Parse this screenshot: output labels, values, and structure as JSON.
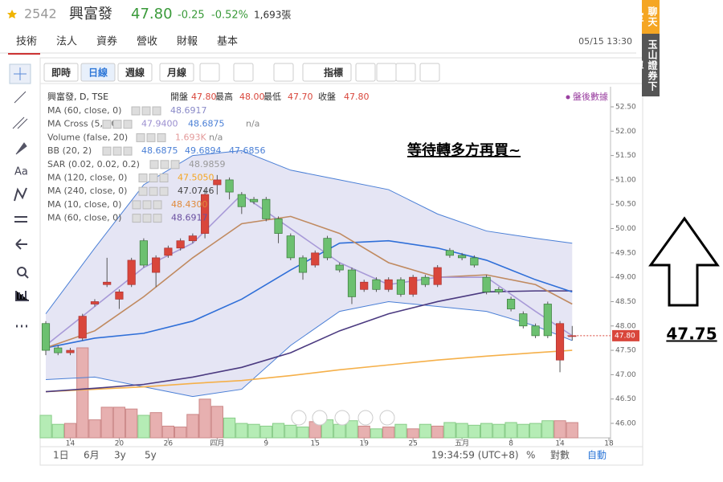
{
  "header": {
    "code": "2542",
    "name": "興富發",
    "price": "47.80",
    "change": "-0.25",
    "change_pct": "-0.52%",
    "volume": "1,693張",
    "datetime": "05/15 13:30"
  },
  "tabs": [
    "技術",
    "法人",
    "資券",
    "營收",
    "財報",
    "基本"
  ],
  "toolbar": [
    "即時",
    "日線",
    "週線",
    "月線",
    "指標"
  ],
  "side_tools": {
    "text_tool": "Aa"
  },
  "side_tabs": [
    "聊天室",
    "玉山證券下單"
  ],
  "bottom": {
    "ranges": [
      "1日",
      "6月",
      "3y",
      "5y"
    ],
    "clock": "19:34:59 (UTC+8)",
    "percent": "%",
    "log": "對數",
    "auto": "自動"
  },
  "note": {
    "text": "47.75"
  },
  "chart_data": {
    "type": "candlestick",
    "title": "興富發, D, TSE",
    "ohlc_info": [
      "開盤",
      "47.80",
      "最高",
      "48.00",
      "最低",
      "47.70",
      "收盤",
      "47.80"
    ],
    "after_hours": "盤後數據",
    "annotation": "等待轉多方再買~",
    "price_tag": "47.80",
    "legend": [
      {
        "label": "MA (60, close, 0)",
        "values": [
          "48.6917"
        ],
        "colors": [
          "#8a8ac8"
        ]
      },
      {
        "label": "MA Cross (5, 20)",
        "values": [
          "47.9400",
          "48.6875",
          "n/a"
        ],
        "colors": [
          "#9b8fd0",
          "#4a7fd6",
          "#888888"
        ]
      },
      {
        "label": "Volume (false, 20)",
        "values": [
          "1.693K",
          "n/a"
        ],
        "colors": [
          "#e39a9a",
          "#888888"
        ]
      },
      {
        "label": "BB (20, 2)",
        "values": [
          "48.6875",
          "49.6894",
          "47.6856"
        ],
        "colors": [
          "#4a7fd6",
          "#4a7fd6",
          "#4a7fd6"
        ]
      },
      {
        "label": "SAR (0.02, 0.02, 0.2)",
        "values": [
          "48.9859"
        ],
        "colors": [
          "#999999"
        ]
      },
      {
        "label": "MA (120, close, 0)",
        "values": [
          "47.5050"
        ],
        "colors": [
          "#f5a623"
        ]
      },
      {
        "label": "MA (240, close, 0)",
        "values": [
          "47.0746"
        ],
        "colors": [
          "#444444"
        ]
      },
      {
        "label": "MA (10, close, 0)",
        "values": [
          "48.4300"
        ],
        "colors": [
          "#e08a3c"
        ]
      },
      {
        "label": "MA (60, close, 0)",
        "values": [
          "48.6917"
        ],
        "colors": [
          "#6a4fa0"
        ]
      }
    ],
    "categories": [
      null,
      null,
      "14",
      null,
      null,
      null,
      "20",
      null,
      null,
      null,
      "26",
      null,
      null,
      null,
      "四月",
      null,
      null,
      null,
      "9",
      null,
      null,
      null,
      "15",
      null,
      null,
      null,
      "19",
      null,
      null,
      null,
      "25",
      null,
      null,
      null,
      "五月",
      null,
      null,
      null,
      "8",
      null,
      null,
      null,
      "14",
      null,
      null,
      null,
      "18"
    ],
    "open": [
      48.05,
      47.55,
      47.45,
      47.75,
      48.45,
      48.85,
      48.55,
      48.85,
      49.75,
      49.1,
      49.45,
      49.6,
      49.75,
      49.9,
      50.9,
      51.0,
      50.7,
      50.6,
      50.6,
      50.2,
      49.85,
      49.4,
      49.25,
      49.8,
      49.25,
      49.15,
      48.75,
      48.95,
      48.75,
      48.95,
      48.65,
      49.0,
      48.85,
      49.55,
      49.45,
      49.4,
      49.0,
      48.75,
      48.55,
      48.25,
      48.0,
      48.45,
      47.3,
      47.8,
      null,
      null,
      null
    ],
    "high": [
      48.1,
      47.6,
      47.55,
      48.25,
      48.55,
      49.4,
      48.75,
      49.4,
      49.8,
      49.45,
      49.65,
      49.8,
      49.9,
      50.8,
      51.1,
      51.05,
      50.75,
      50.65,
      50.65,
      50.25,
      49.9,
      49.45,
      49.55,
      49.85,
      49.3,
      49.2,
      48.95,
      49.0,
      49.0,
      49.0,
      49.05,
      49.05,
      49.25,
      49.6,
      49.5,
      49.45,
      49.05,
      48.8,
      48.6,
      48.3,
      48.05,
      48.5,
      48.1,
      48.0,
      null,
      null,
      null
    ],
    "low": [
      47.4,
      47.4,
      47.4,
      47.7,
      48.4,
      48.8,
      48.35,
      48.8,
      49.2,
      48.8,
      49.4,
      49.55,
      49.7,
      49.8,
      50.7,
      50.6,
      50.3,
      50.5,
      50.15,
      49.7,
      49.35,
      48.95,
      49.2,
      49.35,
      49.1,
      48.45,
      48.7,
      48.7,
      48.7,
      48.6,
      48.6,
      48.8,
      48.8,
      49.4,
      49.35,
      49.2,
      48.65,
      48.65,
      48.3,
      47.95,
      47.75,
      47.75,
      47.05,
      47.7,
      null,
      null,
      null
    ],
    "close": [
      47.5,
      47.45,
      47.5,
      48.2,
      48.5,
      48.9,
      48.7,
      49.35,
      49.25,
      49.4,
      49.6,
      49.75,
      49.85,
      50.7,
      51.0,
      50.75,
      50.45,
      50.55,
      50.2,
      49.9,
      49.4,
      49.1,
      49.5,
      49.4,
      49.15,
      48.6,
      48.9,
      48.75,
      48.95,
      48.65,
      49.0,
      48.85,
      49.2,
      49.45,
      49.4,
      49.25,
      48.7,
      48.7,
      48.35,
      48.0,
      47.8,
      47.8,
      48.05,
      47.8,
      null,
      null,
      null
    ],
    "volume": [
      2.5,
      1.5,
      1.6,
      10.0,
      2.0,
      3.4,
      3.4,
      3.2,
      2.5,
      2.8,
      1.3,
      1.2,
      2.6,
      4.3,
      3.5,
      2.2,
      1.6,
      1.5,
      1.3,
      1.6,
      1.4,
      1.2,
      1.8,
      2.0,
      1.5,
      1.9,
      1.3,
      1.0,
      1.2,
      1.5,
      1.0,
      1.5,
      1.3,
      1.7,
      1.6,
      1.4,
      1.6,
      1.5,
      1.7,
      1.5,
      1.6,
      1.9,
      1.9,
      1.693,
      null,
      null,
      null
    ],
    "series": [
      {
        "color": "#4a7fd6",
        "x": [
          0,
          4,
          8,
          12,
          16,
          20,
          24,
          28,
          32,
          36,
          40,
          43
        ],
        "values": [
          48.25,
          49.6,
          50.9,
          51.5,
          51.6,
          51.2,
          51.0,
          50.8,
          50.3,
          49.95,
          49.8,
          49.7
        ]
      },
      {
        "color": "#4a7fd6",
        "x": [
          0,
          4,
          8,
          12,
          16,
          20,
          24,
          28,
          32,
          36,
          40,
          43
        ],
        "values": [
          46.9,
          46.95,
          46.75,
          46.55,
          46.7,
          47.6,
          48.3,
          48.5,
          48.4,
          48.3,
          48.0,
          47.7
        ]
      },
      {
        "color": "#f5b04a",
        "x": [
          0,
          4,
          8,
          12,
          16,
          20,
          24,
          28,
          32,
          36,
          40,
          43
        ],
        "values": [
          46.65,
          46.7,
          46.75,
          46.82,
          46.88,
          46.98,
          47.1,
          47.2,
          47.3,
          47.38,
          47.45,
          47.5
        ]
      },
      {
        "color": "#4b3a80",
        "x": [
          0,
          4,
          8,
          12,
          16,
          20,
          24,
          28,
          32,
          36,
          40,
          43
        ],
        "values": [
          46.65,
          46.72,
          46.8,
          46.95,
          47.15,
          47.45,
          47.9,
          48.25,
          48.5,
          48.7,
          48.72,
          48.72
        ]
      },
      {
        "color": "#2f6fd8",
        "x": [
          0,
          4,
          8,
          12,
          16,
          20,
          24,
          28,
          32,
          36,
          40,
          43
        ],
        "values": [
          47.55,
          47.75,
          47.85,
          48.1,
          48.55,
          49.15,
          49.7,
          49.75,
          49.6,
          49.35,
          48.95,
          48.7
        ]
      },
      {
        "color": "#c08a60",
        "x": [
          0,
          4,
          8,
          12,
          16,
          20,
          24,
          28,
          32,
          36,
          40,
          43
        ],
        "values": [
          47.55,
          47.9,
          48.6,
          49.4,
          50.1,
          50.25,
          49.9,
          49.3,
          49.0,
          49.05,
          48.85,
          48.45
        ]
      },
      {
        "color": "#a89ad8",
        "x": [
          0,
          4,
          8,
          12,
          16,
          20,
          24,
          28,
          32,
          36,
          40,
          43
        ],
        "values": [
          47.6,
          48.4,
          49.2,
          49.7,
          50.7,
          50.0,
          49.3,
          48.85,
          49.0,
          49.0,
          48.3,
          47.8
        ]
      }
    ],
    "ylim": [
      45.7,
      52.8
    ],
    "yticks": [
      {
        "value": 46,
        "label": "46.00"
      },
      {
        "value": 46.5,
        "label": "46.50"
      },
      {
        "value": 47,
        "label": "47.00"
      },
      {
        "value": 47.5,
        "label": "47.50"
      },
      {
        "value": 48,
        "label": "48.00"
      },
      {
        "value": 48.5,
        "label": "48.50"
      },
      {
        "value": 49,
        "label": "49.00"
      },
      {
        "value": 49.5,
        "label": "49.50"
      },
      {
        "value": 50,
        "label": "50.00"
      },
      {
        "value": 50.5,
        "label": "50.50"
      },
      {
        "value": 51,
        "label": "51.00"
      },
      {
        "value": 51.5,
        "label": "51.50"
      },
      {
        "value": 52,
        "label": "52.00"
      },
      {
        "value": 52.5,
        "label": "52.50"
      }
    ],
    "up_color": "#d9463b",
    "down_color": "#6cc070",
    "band_fill": "#dcdcf0"
  }
}
